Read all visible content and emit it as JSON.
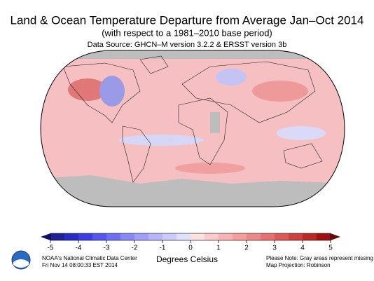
{
  "header": {
    "title": "Land & Ocean Temperature Departure from Average Jan–Oct 2014",
    "subtitle": "(with respect to a 1981–2010 base period)",
    "source": "Data Source: GHCN–M version 3.2.2 & ERSST version 3b"
  },
  "colorbar": {
    "label": "Degrees Celsius",
    "ticks": [
      -5,
      -4,
      -3,
      -2,
      -1,
      0,
      1,
      2,
      3,
      4,
      5
    ],
    "colors": [
      "#202098",
      "#2a2ac4",
      "#3c3ce2",
      "#5656ee",
      "#6e6ef4",
      "#8888f7",
      "#a0a0fa",
      "#b6b6fb",
      "#cacafc",
      "#dedefd",
      "#fde0e0",
      "#fbcaca",
      "#f8b4b4",
      "#f49e9e",
      "#ef8888",
      "#e87070",
      "#de5858",
      "#cf4040",
      "#ba2828",
      "#a01212"
    ],
    "under_color": "#10106a",
    "over_color": "#6a0808"
  },
  "footer": {
    "org": "NOAA's National Climatic Data Center",
    "date": "Fri Nov 14 08:00:33 EST 2014",
    "note": "Please Note: Gray areas represent missing data",
    "projection": "Map Projection: Robinson"
  }
}
